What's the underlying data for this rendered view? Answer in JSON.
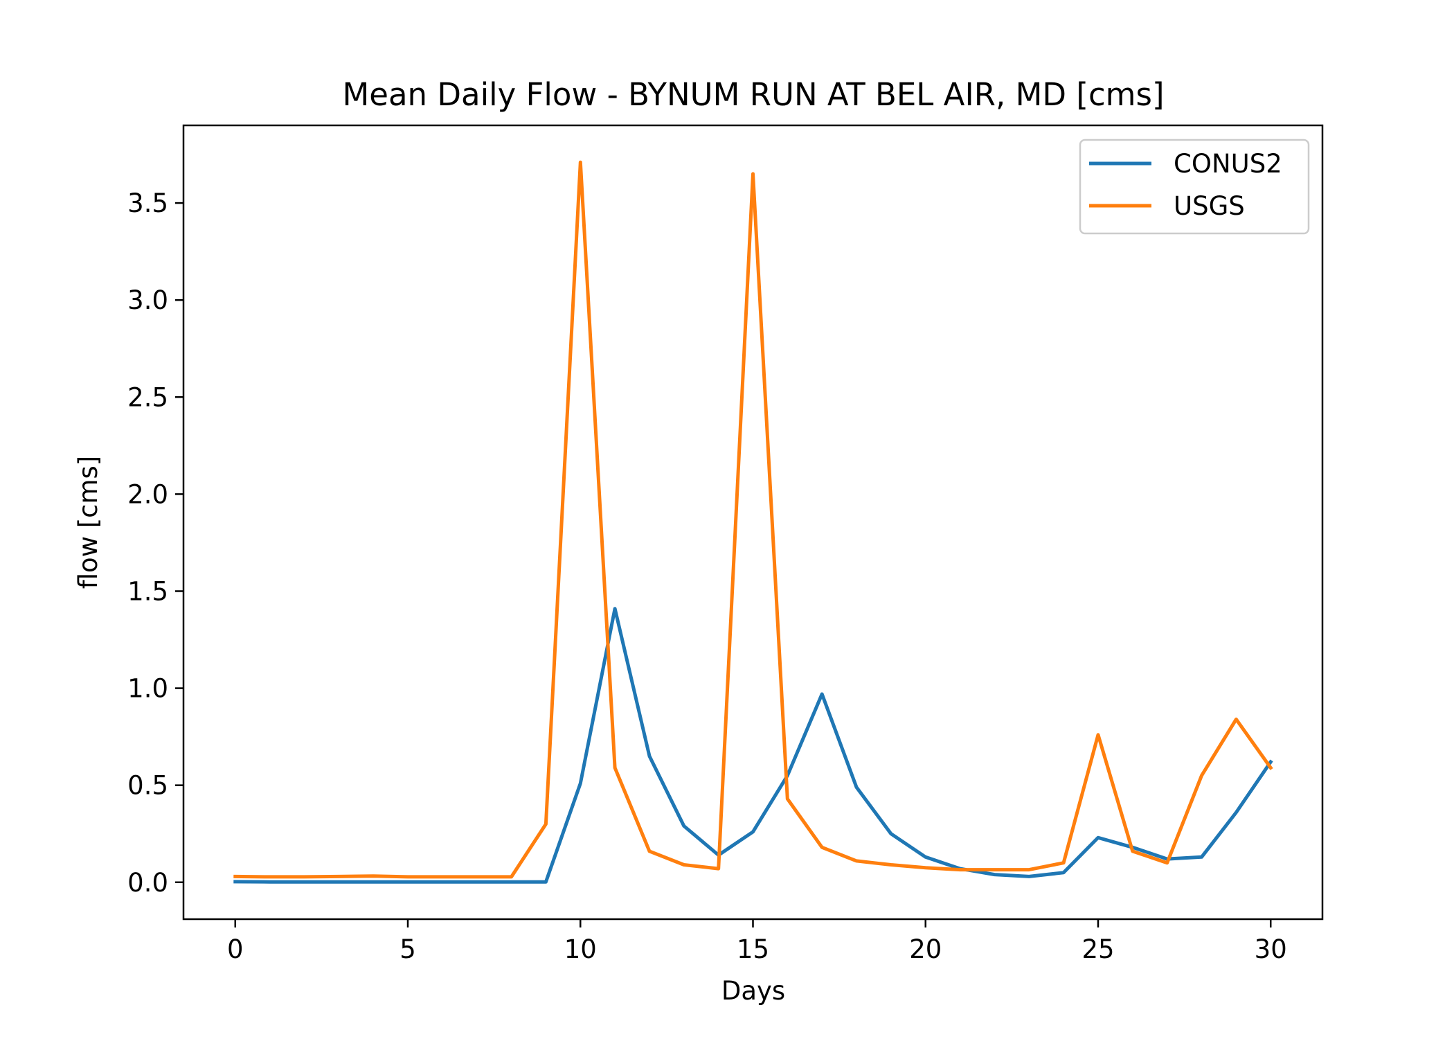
{
  "chart_data": {
    "type": "line",
    "title": "Mean Daily Flow - BYNUM RUN AT BEL AIR, MD [cms]",
    "xlabel": "Days",
    "ylabel": "flow [cms]",
    "xlim": [
      -1.5,
      31.5
    ],
    "ylim": [
      -0.19,
      3.9
    ],
    "xticks": [
      0,
      5,
      10,
      15,
      20,
      25,
      30
    ],
    "xtick_labels": [
      "0",
      "5",
      "10",
      "15",
      "20",
      "25",
      "30"
    ],
    "yticks": [
      0.0,
      0.5,
      1.0,
      1.5,
      2.0,
      2.5,
      3.0,
      3.5
    ],
    "ytick_labels": [
      "0.0",
      "0.5",
      "1.0",
      "1.5",
      "2.0",
      "2.5",
      "3.0",
      "3.5"
    ],
    "grid": false,
    "legend_position": "upper right",
    "x": [
      0,
      1,
      2,
      3,
      4,
      5,
      6,
      7,
      8,
      9,
      10,
      11,
      12,
      13,
      14,
      15,
      16,
      17,
      18,
      19,
      20,
      21,
      22,
      23,
      24,
      25,
      26,
      27,
      28,
      29,
      30
    ],
    "series": [
      {
        "name": "CONUS2",
        "color": "#1f77b4",
        "values": [
          0.003,
          0.002,
          0.002,
          0.002,
          0.002,
          0.002,
          0.002,
          0.002,
          0.002,
          0.002,
          0.51,
          1.41,
          0.65,
          0.29,
          0.14,
          0.26,
          0.55,
          0.97,
          0.49,
          0.25,
          0.13,
          0.07,
          0.04,
          0.03,
          0.05,
          0.23,
          0.18,
          0.12,
          0.13,
          0.36,
          0.62
        ]
      },
      {
        "name": "USGS",
        "color": "#ff7f0e",
        "values": [
          0.03,
          0.028,
          0.028,
          0.03,
          0.032,
          0.028,
          0.028,
          0.028,
          0.028,
          0.3,
          3.71,
          0.59,
          0.16,
          0.09,
          0.07,
          3.65,
          0.43,
          0.18,
          0.11,
          0.09,
          0.075,
          0.065,
          0.065,
          0.065,
          0.1,
          0.76,
          0.16,
          0.1,
          0.55,
          0.84,
          0.59
        ]
      }
    ]
  }
}
